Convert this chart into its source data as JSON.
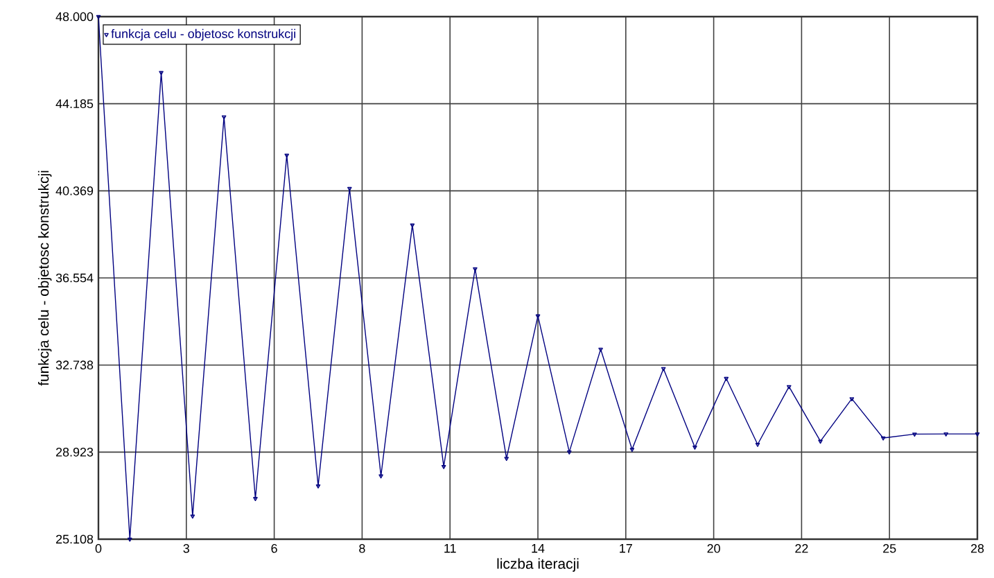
{
  "chart_data": {
    "type": "line",
    "xlabel": "liczba iteracji",
    "ylabel": "funkcja celu - objetosc konstrukcji",
    "x": [
      0,
      1,
      2,
      3,
      4,
      5,
      6,
      7,
      8,
      9,
      10,
      11,
      12,
      13,
      14,
      15,
      16,
      17,
      18,
      19,
      20,
      21,
      22,
      23,
      24,
      25,
      26,
      27,
      28
    ],
    "series": [
      {
        "name": "funkcja celu - objetosc konstrukcji",
        "color": "#000080",
        "values": [
          48.0,
          25.11,
          45.55,
          26.12,
          43.61,
          26.89,
          41.93,
          27.44,
          40.47,
          27.88,
          38.87,
          28.29,
          36.95,
          28.65,
          34.89,
          28.93,
          33.43,
          29.04,
          32.58,
          29.14,
          32.15,
          29.26,
          31.79,
          29.4,
          31.26,
          29.54,
          29.71,
          29.72,
          29.72
        ]
      }
    ],
    "xlim": [
      0,
      28
    ],
    "ylim": [
      25.108,
      48.0
    ],
    "xticks": [
      0,
      {
        "value": 2.8,
        "label": "3"
      },
      {
        "value": 5.6,
        "label": "6"
      },
      {
        "value": 8.4,
        "label": "8"
      },
      {
        "value": 11.2,
        "label": "11"
      },
      14,
      {
        "value": 16.8,
        "label": "17"
      },
      {
        "value": 19.6,
        "label": "20"
      },
      {
        "value": 22.4,
        "label": "22"
      },
      {
        "value": 25.2,
        "label": "25"
      },
      28
    ],
    "yticks": [
      25.108,
      28.923,
      32.738,
      36.554,
      40.369,
      44.185,
      {
        "value": 48.0,
        "label": "48.000"
      }
    ],
    "grid": true,
    "legend": "top left",
    "marker": "triangle",
    "line_style": "solid"
  }
}
